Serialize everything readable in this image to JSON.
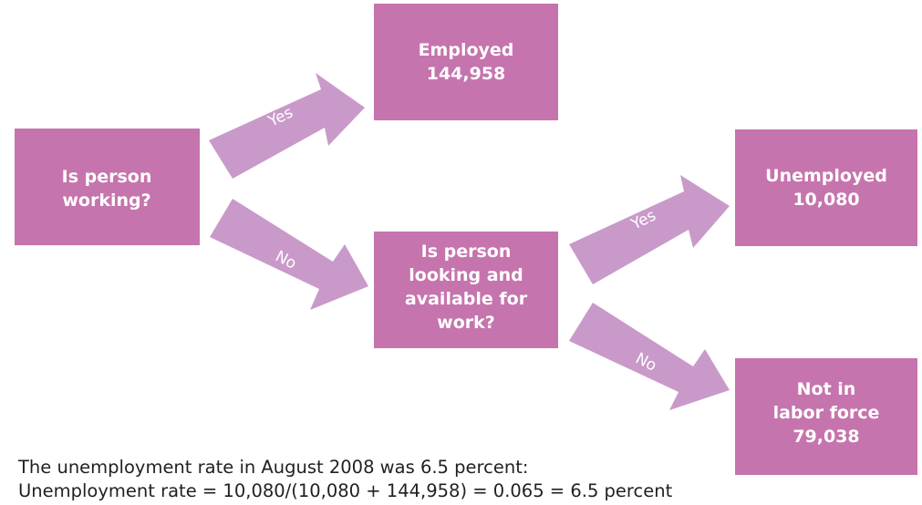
{
  "boxes": {
    "working": {
      "lines": [
        "Is person",
        "working?"
      ]
    },
    "employed": {
      "lines": [
        "Employed",
        "144,958"
      ]
    },
    "looking": {
      "lines": [
        "Is person",
        "looking and",
        "available for",
        "work?"
      ]
    },
    "unemployed": {
      "lines": [
        "Unemployed",
        "10,080"
      ]
    },
    "not_in_labor": {
      "lines": [
        "Not in",
        "labor force",
        "79,038"
      ]
    }
  },
  "arrows": {
    "working_yes": "Yes",
    "working_no": "No",
    "looking_yes": "Yes",
    "looking_no": "No"
  },
  "caption": {
    "line1": "The unemployment rate in August 2008 was 6.5 percent:",
    "line2": "Unemployment rate = 10,080/(10,080 + 144,958) = 0.065 = 6.5 percent"
  },
  "colors": {
    "box": "#c674ad",
    "arrow": "#c99ac9",
    "text": "#ffffff"
  }
}
